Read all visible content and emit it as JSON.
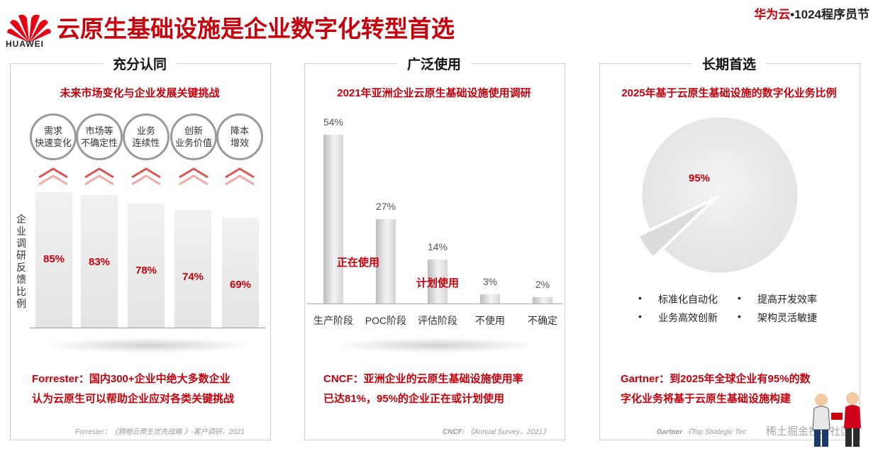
{
  "header": {
    "logo_text": "HUAWEI",
    "title": "云原生基础设施是企业数字化转型首选",
    "event_red": "华为云",
    "event_rest": "•1024程序员节"
  },
  "panels": [
    {
      "heading": "充分认同",
      "subtitle": "未来市场变化与企业发展关键挑战",
      "challenges": [
        "需求\n快速变化",
        "市场等\n不确定性",
        "业务\n连续性",
        "创新\n业务价值",
        "降本\n增效"
      ],
      "y_label": "企业调研反馈比例",
      "footer_lines": [
        "Forrester：国内300+企业中绝大多数企业",
        "认为云原生可以帮助企业应对各类关键挑战"
      ],
      "source": "Forrester：《拥抱云原生优先战略 》-客户调研，2021"
    },
    {
      "heading": "广泛使用",
      "subtitle": "2021年亚洲企业云原生基础设施使用调研",
      "overlay_using": "正在使用",
      "overlay_planned": "计划使用",
      "footer_lines": [
        "CNCF：亚洲企业的云原生基础设施使用率",
        "已达81%，95%的企业正在或计划使用"
      ],
      "source_bold": "CNCF:",
      "source_rest": "《Annual Survey，2021》"
    },
    {
      "heading": "长期首选",
      "subtitle": "2025年基于云原生基础设施的数字化业务比例",
      "legend": [
        "标准化自动化",
        "提高开发效率",
        "业务高效创新",
        "架构灵活敏捷"
      ],
      "footer_lines": [
        "Gartner：到2025年全球企业有95%的数",
        "字化业务将基于云原生基础设施构建"
      ],
      "source_bold": "Gartner",
      "source_rest": "《Top Strategic Tec",
      "watermark": "稀土掘金技术社区"
    }
  ],
  "chart_data": [
    {
      "type": "bar",
      "title": "未来市场变化与企业发展关键挑战",
      "ylabel": "企业调研反馈比例",
      "categories": [
        "需求快速变化",
        "市场等不确定性",
        "业务连续性",
        "创新业务价值",
        "降本增效"
      ],
      "values": [
        85,
        83,
        78,
        74,
        69
      ],
      "labels": [
        "85%",
        "83%",
        "78%",
        "74%",
        "69%"
      ],
      "ylim": [
        0,
        100
      ]
    },
    {
      "type": "bar",
      "title": "2021年亚洲企业云原生基础设施使用调研",
      "categories": [
        "生产阶段",
        "POC阶段",
        "评估阶段",
        "不使用",
        "不确定"
      ],
      "values": [
        54,
        27,
        14,
        3,
        2
      ],
      "labels": [
        "54%",
        "27%",
        "14%",
        "3%",
        "2%"
      ],
      "ylim": [
        0,
        60
      ]
    },
    {
      "type": "pie",
      "title": "2025年基于云原生基础设施的数字化业务比例",
      "slices": [
        {
          "label": "95%",
          "value": 95
        },
        {
          "label": "",
          "value": 5
        }
      ]
    }
  ],
  "colors": {
    "brand_red": "#c7000b",
    "grey": "#e8e8e8"
  }
}
